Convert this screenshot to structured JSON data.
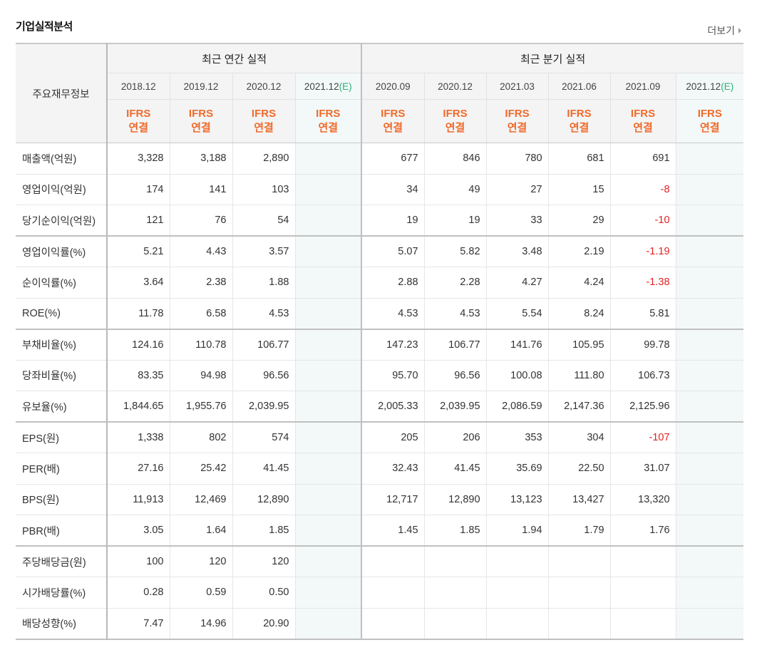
{
  "header": {
    "title": "기업실적분석",
    "more_label": "더보기"
  },
  "table": {
    "label_header": "주요재무정보",
    "group_annual": "최근 연간 실적",
    "group_quarter": "최근 분기 실적",
    "annual_periods": [
      {
        "date": "2018.12",
        "est": ""
      },
      {
        "date": "2019.12",
        "est": ""
      },
      {
        "date": "2020.12",
        "est": ""
      },
      {
        "date": "2021.12",
        "est": "(E)"
      }
    ],
    "quarter_periods": [
      {
        "date": "2020.09",
        "est": ""
      },
      {
        "date": "2020.12",
        "est": ""
      },
      {
        "date": "2021.03",
        "est": ""
      },
      {
        "date": "2021.06",
        "est": ""
      },
      {
        "date": "2021.09",
        "est": ""
      },
      {
        "date": "2021.12",
        "est": "(E)"
      }
    ],
    "ifrs_line1": "IFRS",
    "ifrs_line2": "연결",
    "rows": [
      {
        "label": "매출액(억원)",
        "annual": [
          "3,328",
          "3,188",
          "2,890",
          ""
        ],
        "quarter": [
          "677",
          "846",
          "780",
          "681",
          "691",
          ""
        ]
      },
      {
        "label": "영업이익(억원)",
        "annual": [
          "174",
          "141",
          "103",
          ""
        ],
        "quarter": [
          "34",
          "49",
          "27",
          "15",
          "-8",
          ""
        ]
      },
      {
        "label": "당기순이익(억원)",
        "annual": [
          "121",
          "76",
          "54",
          ""
        ],
        "quarter": [
          "19",
          "19",
          "33",
          "29",
          "-10",
          ""
        ]
      },
      {
        "label": "영업이익률(%)",
        "annual": [
          "5.21",
          "4.43",
          "3.57",
          ""
        ],
        "quarter": [
          "5.07",
          "5.82",
          "3.48",
          "2.19",
          "-1.19",
          ""
        ]
      },
      {
        "label": "순이익률(%)",
        "annual": [
          "3.64",
          "2.38",
          "1.88",
          ""
        ],
        "quarter": [
          "2.88",
          "2.28",
          "4.27",
          "4.24",
          "-1.38",
          ""
        ]
      },
      {
        "label": "ROE(%)",
        "annual": [
          "11.78",
          "6.58",
          "4.53",
          ""
        ],
        "quarter": [
          "4.53",
          "4.53",
          "5.54",
          "8.24",
          "5.81",
          ""
        ]
      },
      {
        "label": "부채비율(%)",
        "annual": [
          "124.16",
          "110.78",
          "106.77",
          ""
        ],
        "quarter": [
          "147.23",
          "106.77",
          "141.76",
          "105.95",
          "99.78",
          ""
        ]
      },
      {
        "label": "당좌비율(%)",
        "annual": [
          "83.35",
          "94.98",
          "96.56",
          ""
        ],
        "quarter": [
          "95.70",
          "96.56",
          "100.08",
          "111.80",
          "106.73",
          ""
        ]
      },
      {
        "label": "유보율(%)",
        "annual": [
          "1,844.65",
          "1,955.76",
          "2,039.95",
          ""
        ],
        "quarter": [
          "2,005.33",
          "2,039.95",
          "2,086.59",
          "2,147.36",
          "2,125.96",
          ""
        ]
      },
      {
        "label": "EPS(원)",
        "annual": [
          "1,338",
          "802",
          "574",
          ""
        ],
        "quarter": [
          "205",
          "206",
          "353",
          "304",
          "-107",
          ""
        ]
      },
      {
        "label": "PER(배)",
        "annual": [
          "27.16",
          "25.42",
          "41.45",
          ""
        ],
        "quarter": [
          "32.43",
          "41.45",
          "35.69",
          "22.50",
          "31.07",
          ""
        ]
      },
      {
        "label": "BPS(원)",
        "annual": [
          "11,913",
          "12,469",
          "12,890",
          ""
        ],
        "quarter": [
          "12,717",
          "12,890",
          "13,123",
          "13,427",
          "13,320",
          ""
        ]
      },
      {
        "label": "PBR(배)",
        "annual": [
          "3.05",
          "1.64",
          "1.85",
          ""
        ],
        "quarter": [
          "1.45",
          "1.85",
          "1.94",
          "1.79",
          "1.76",
          ""
        ]
      },
      {
        "label": "주당배당금(원)",
        "annual": [
          "100",
          "120",
          "120",
          ""
        ],
        "quarter": [
          "",
          "",
          "",
          "",
          "",
          ""
        ]
      },
      {
        "label": "시가배당률(%)",
        "annual": [
          "0.28",
          "0.59",
          "0.50",
          ""
        ],
        "quarter": [
          "",
          "",
          "",
          "",
          "",
          ""
        ]
      },
      {
        "label": "배당성향(%)",
        "annual": [
          "7.47",
          "14.96",
          "20.90",
          ""
        ],
        "quarter": [
          "",
          "",
          "",
          "",
          "",
          ""
        ]
      }
    ],
    "group_end_rows": [
      2,
      5,
      8,
      12
    ]
  },
  "colors": {
    "ifrs": "#f06a2a",
    "estimate": "#2bb37a",
    "negative": "#e22222",
    "estimate_column_bg": "#f3f8f8"
  }
}
